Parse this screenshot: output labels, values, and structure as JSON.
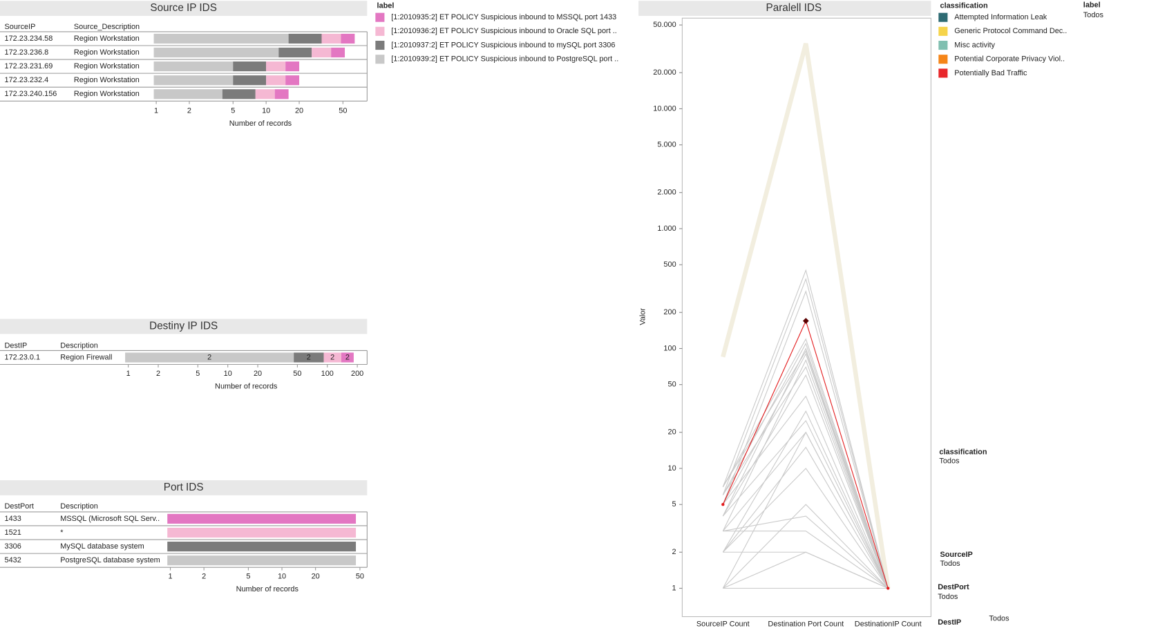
{
  "chart_data": [
    {
      "type": "stacked-bar",
      "title": "Source IP IDS",
      "columns": [
        "SourceIP",
        "Source_Description"
      ],
      "rows": [
        [
          "172.23.234.58",
          "Region Workstation"
        ],
        [
          "172.23.236.8",
          "Region Workstation"
        ],
        [
          "172.23.231.69",
          "Region Workstation"
        ],
        [
          "172.23.232.4",
          "Region Workstation"
        ],
        [
          "172.23.240.156",
          "Region Workstation"
        ]
      ],
      "series": [
        {
          "color": "#c8c8c8",
          "values": [
            16,
            13,
            5,
            5,
            4
          ]
        },
        {
          "color": "#7b7b7b",
          "values": [
            16,
            13,
            5,
            5,
            4
          ]
        },
        {
          "color": "#f5b8d3",
          "values": [
            16,
            13,
            5,
            5,
            4
          ]
        },
        {
          "color": "#e377c2",
          "values": [
            16,
            13,
            5,
            5,
            4
          ]
        }
      ],
      "xlabel": "Number of records",
      "xscale": "log",
      "xlim": [
        0.95,
        83
      ],
      "xticks": [
        1,
        2,
        5,
        10,
        20,
        50
      ]
    },
    {
      "type": "stacked-bar",
      "title": "Destiny IP IDS",
      "columns": [
        "DestIP",
        "Description"
      ],
      "rows": [
        [
          "172.23.0.1",
          "Region Firewall"
        ]
      ],
      "series": [
        {
          "color": "#c8c8c8",
          "values": [
            46
          ]
        },
        {
          "color": "#7b7b7b",
          "values": [
            46
          ]
        },
        {
          "color": "#f5b8d3",
          "values": [
            46
          ]
        },
        {
          "color": "#e377c2",
          "values": [
            46
          ]
        }
      ],
      "segment_labels": [
        "2",
        "2",
        "2",
        "2"
      ],
      "xlabel": "Number of records",
      "xscale": "log",
      "xlim": [
        0.93,
        251
      ],
      "xticks": [
        1,
        2,
        5,
        10,
        20,
        50,
        100,
        200
      ]
    },
    {
      "type": "bar",
      "title": "Port IDS",
      "columns": [
        "DestPort",
        "Description"
      ],
      "rows": [
        [
          "1433",
          "MSSQL (Microsoft SQL Serv.."
        ],
        [
          "1521",
          "*"
        ],
        [
          "3306",
          "MySQL database system"
        ],
        [
          "5432",
          "PostgreSQL database system"
        ]
      ],
      "values": [
        46,
        46,
        46,
        46
      ],
      "colors": [
        "#e377c2",
        "#f5b8d3",
        "#7b7b7b",
        "#c8c8c8"
      ],
      "xlabel": "Number of records",
      "xscale": "log",
      "xlim": [
        0.94,
        58
      ],
      "xticks": [
        1,
        2,
        5,
        10,
        20,
        50
      ]
    },
    {
      "type": "parallel",
      "title": "Paralell IDS",
      "categories": [
        "SourceIP Count",
        "Destination Port Count",
        "DestinationIP Count"
      ],
      "ylabel": "Valor",
      "yscale": "log",
      "ylim": [
        0.58,
        57000
      ],
      "yticks": [
        1,
        2,
        5,
        10,
        20,
        50,
        100,
        200,
        500,
        {
          "value": 1000,
          "label": "1.000"
        },
        {
          "value": 2000,
          "label": "2.000"
        },
        {
          "value": 5000,
          "label": "5.000"
        },
        {
          "value": 10000,
          "label": "10.000"
        },
        {
          "value": 20000,
          "label": "20.000"
        },
        {
          "value": 50000,
          "label": "50.000"
        }
      ],
      "line_color": "#c9c9c9",
      "lines": [
        [
          7,
          450,
          1
        ],
        [
          6,
          380,
          1
        ],
        [
          5,
          300,
          1
        ],
        [
          7,
          120,
          1
        ],
        [
          6,
          110,
          1
        ],
        [
          5,
          90,
          1
        ],
        [
          4,
          100,
          1
        ],
        [
          3,
          80,
          1
        ],
        [
          7,
          95,
          1
        ],
        [
          6,
          70,
          1
        ],
        [
          4,
          60,
          1
        ],
        [
          5,
          40,
          1
        ],
        [
          2,
          30,
          1
        ],
        [
          4,
          25,
          1
        ],
        [
          1,
          20,
          1
        ],
        [
          3,
          20,
          1
        ],
        [
          2,
          15,
          1
        ],
        [
          2,
          10,
          1
        ],
        [
          1,
          5,
          1
        ],
        [
          3,
          4,
          1
        ],
        [
          3,
          3,
          1
        ],
        [
          1,
          2,
          1
        ],
        [
          2,
          2,
          1
        ],
        [
          1,
          1,
          1
        ]
      ],
      "band": {
        "color": "#f2eedf",
        "values": [
          85,
          35000,
          1
        ]
      },
      "highlight": {
        "color": "#e31a1c",
        "values": [
          5,
          170,
          1
        ]
      }
    }
  ],
  "legends": [
    {
      "title": "label",
      "items": [
        {
          "label": "[1:2010935:2] ET POLICY Suspicious inbound to MSSQL port 1433",
          "color": "#e377c2"
        },
        {
          "label": "[1:2010936:2] ET POLICY Suspicious inbound to Oracle SQL port ..",
          "color": "#f5b8d3"
        },
        {
          "label": "[1:2010937:2] ET POLICY Suspicious inbound to mySQL port 3306",
          "color": "#7b7b7b"
        },
        {
          "label": "[1:2010939:2] ET POLICY Suspicious inbound to PostgreSQL port ..",
          "color": "#c8c8c8"
        }
      ]
    },
    {
      "title": "classification",
      "items": [
        {
          "label": "Attempted Information Leak",
          "color": "#2e6b73"
        },
        {
          "label": "Generic Protocol Command Dec..",
          "color": "#f6d44a"
        },
        {
          "label": "Misc activity",
          "color": "#80bfb0"
        },
        {
          "label": "Potential Corporate Privacy Viol..",
          "color": "#f58518"
        },
        {
          "label": "Potentially Bad Traffic",
          "color": "#e8262a"
        }
      ]
    }
  ],
  "filters": [
    {
      "title": "label",
      "value": "Todos"
    },
    {
      "title": "classification",
      "value": "Todos"
    },
    {
      "title": "SourceIP",
      "value": "Todos"
    },
    {
      "title": "DestPort",
      "value": "Todos"
    },
    {
      "title": "DestIP",
      "value": "Todos"
    }
  ]
}
